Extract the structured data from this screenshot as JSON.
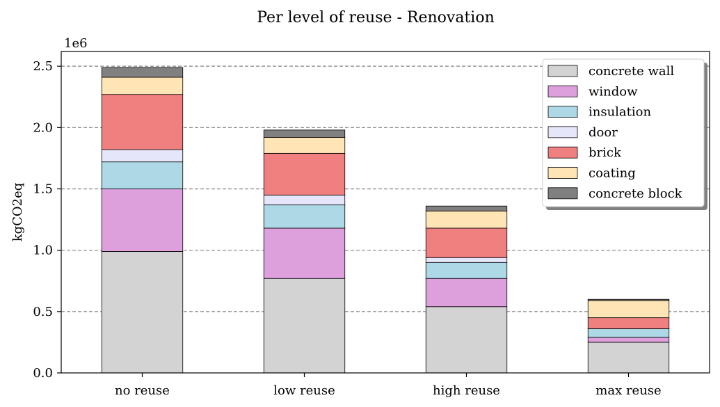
{
  "chart_data": {
    "type": "bar",
    "stacked": true,
    "title": "Per level of reuse - Renovation",
    "xlabel": "",
    "ylabel": "kgCO2eq",
    "offset_label": "1e6",
    "categories": [
      "no reuse",
      "low reuse",
      "high reuse",
      "max reuse"
    ],
    "ylim": [
      0,
      2.62
    ],
    "yticks": [
      0.0,
      0.5,
      1.0,
      1.5,
      2.0,
      2.5
    ],
    "ytick_labels": [
      "0.0",
      "0.5",
      "1.0",
      "1.5",
      "2.0",
      "2.5"
    ],
    "grid": "horizontal dashed",
    "legend_position": "top-right",
    "series": [
      {
        "name": "concrete wall",
        "color": "#d3d3d3",
        "values": [
          0.99,
          0.77,
          0.54,
          0.25
        ]
      },
      {
        "name": "window",
        "color": "#dda0dd",
        "values": [
          0.51,
          0.41,
          0.23,
          0.04
        ]
      },
      {
        "name": "insulation",
        "color": "#add8e6",
        "values": [
          0.22,
          0.19,
          0.13,
          0.07
        ]
      },
      {
        "name": "door",
        "color": "#e6e6fa",
        "values": [
          0.1,
          0.08,
          0.04,
          0.0
        ]
      },
      {
        "name": "brick",
        "color": "#f08080",
        "values": [
          0.45,
          0.34,
          0.24,
          0.09
        ]
      },
      {
        "name": "coating",
        "color": "#ffe4b5",
        "values": [
          0.14,
          0.13,
          0.14,
          0.14
        ]
      },
      {
        "name": "concrete block",
        "color": "#808080",
        "values": [
          0.08,
          0.06,
          0.04,
          0.01
        ]
      }
    ]
  }
}
